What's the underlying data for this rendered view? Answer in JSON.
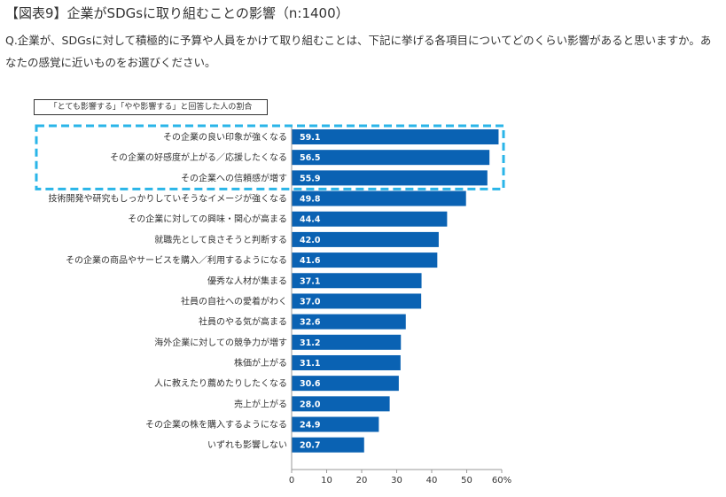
{
  "header": {
    "title": "【図表9】企業がSDGsに取り組むことの影響（n:1400）",
    "question": "Q.企業が、SDGsに対して積極的に予算や人員をかけて取り組むことは、下記に挙げる各項目についてどのくらい影響があると思いますか。あなたの感覚に近いものをお選びください。"
  },
  "legend": {
    "label": "「とても影響する」「やや影響する」と回答した人の割合"
  },
  "colors": {
    "bar": "#0a62b3",
    "highlight_border": "#2ab5e8",
    "value_text": "#ffffff",
    "axis": "#999999"
  },
  "chart_data": {
    "type": "bar",
    "orientation": "horizontal",
    "title": "",
    "xlabel": "",
    "ylabel": "",
    "categories": [
      "その企業の良い印象が強くなる",
      "その企業の好感度が上がる／応援したくなる",
      "その企業への信頼感が増す",
      "技術開発や研究もしっかりしていそうなイメージが強くなる",
      "その企業に対しての興味・関心が高まる",
      "就職先として良さそうと判断する",
      "その企業の商品やサービスを購入／利用するようになる",
      "優秀な人材が集まる",
      "社員の自社への愛着がわく",
      "社員のやる気が高まる",
      "海外企業に対しての競争力が増す",
      "株価が上がる",
      "人に教えたり薦めたりしたくなる",
      "売上が上がる",
      "その企業の株を購入するようになる",
      "いずれも影響しない"
    ],
    "values": [
      59.1,
      56.5,
      55.9,
      49.8,
      44.4,
      42.0,
      41.6,
      37.1,
      37.0,
      32.6,
      31.2,
      31.1,
      30.6,
      28.0,
      24.9,
      20.7
    ],
    "value_labels": [
      "59.1",
      "56.5",
      "55.9",
      "49.8",
      "44.4",
      "42.0",
      "41.6",
      "37.1",
      "37.0",
      "32.6",
      "31.2",
      "31.1",
      "30.6",
      "28.0",
      "24.9",
      "20.7"
    ],
    "xlim": [
      0,
      60
    ],
    "ticks": [
      0,
      10,
      20,
      30,
      40,
      50,
      60
    ],
    "tick_labels": [
      "0",
      "10",
      "20",
      "30",
      "40",
      "50",
      "60%"
    ],
    "highlighted_categories": 3,
    "grid": false
  }
}
